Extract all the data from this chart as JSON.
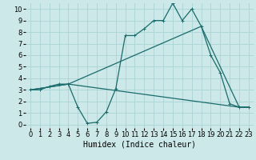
{
  "xlabel": "Humidex (Indice chaleur)",
  "xlim": [
    -0.5,
    23.5
  ],
  "ylim": [
    -0.3,
    10.5
  ],
  "xticks": [
    0,
    1,
    2,
    3,
    4,
    5,
    6,
    7,
    8,
    9,
    10,
    11,
    12,
    13,
    14,
    15,
    16,
    17,
    18,
    19,
    20,
    21,
    22,
    23
  ],
  "yticks": [
    0,
    1,
    2,
    3,
    4,
    5,
    6,
    7,
    8,
    9,
    10
  ],
  "bg_color": "#cce8e8",
  "grid_color": "#aad4d4",
  "line_color": "#1a6b6b",
  "line1_x": [
    0,
    1,
    2,
    3,
    4,
    5,
    6,
    7,
    8,
    9,
    10,
    11,
    12,
    13,
    14,
    15,
    16,
    17,
    18,
    19,
    20,
    21,
    22,
    23
  ],
  "line1_y": [
    3.0,
    3.0,
    3.3,
    3.5,
    3.5,
    1.5,
    0.1,
    0.2,
    1.1,
    3.1,
    7.7,
    7.7,
    8.3,
    9.0,
    9.0,
    10.5,
    9.0,
    10.0,
    8.5,
    6.0,
    4.5,
    1.8,
    1.5,
    1.5
  ],
  "line2_x": [
    0,
    4,
    22,
    23
  ],
  "line2_y": [
    3.0,
    3.5,
    1.5,
    1.5
  ],
  "line3_x": [
    0,
    4,
    18,
    22,
    23
  ],
  "line3_y": [
    3.0,
    3.5,
    8.5,
    1.5,
    1.5
  ],
  "marker_x1": [
    0,
    1,
    2,
    3,
    4,
    5,
    6,
    7,
    8,
    9,
    10,
    11,
    12,
    13,
    14,
    15,
    16,
    17,
    18,
    19,
    20,
    21,
    22,
    23
  ],
  "marker_y1": [
    3.0,
    3.0,
    3.3,
    3.5,
    3.5,
    1.5,
    0.1,
    0.2,
    1.1,
    3.1,
    7.7,
    7.7,
    8.3,
    9.0,
    9.0,
    10.5,
    9.0,
    10.0,
    8.5,
    6.0,
    4.5,
    1.8,
    1.5,
    1.5
  ],
  "font_size": 6.0,
  "xlabel_fontsize": 7.0,
  "lw": 0.9
}
